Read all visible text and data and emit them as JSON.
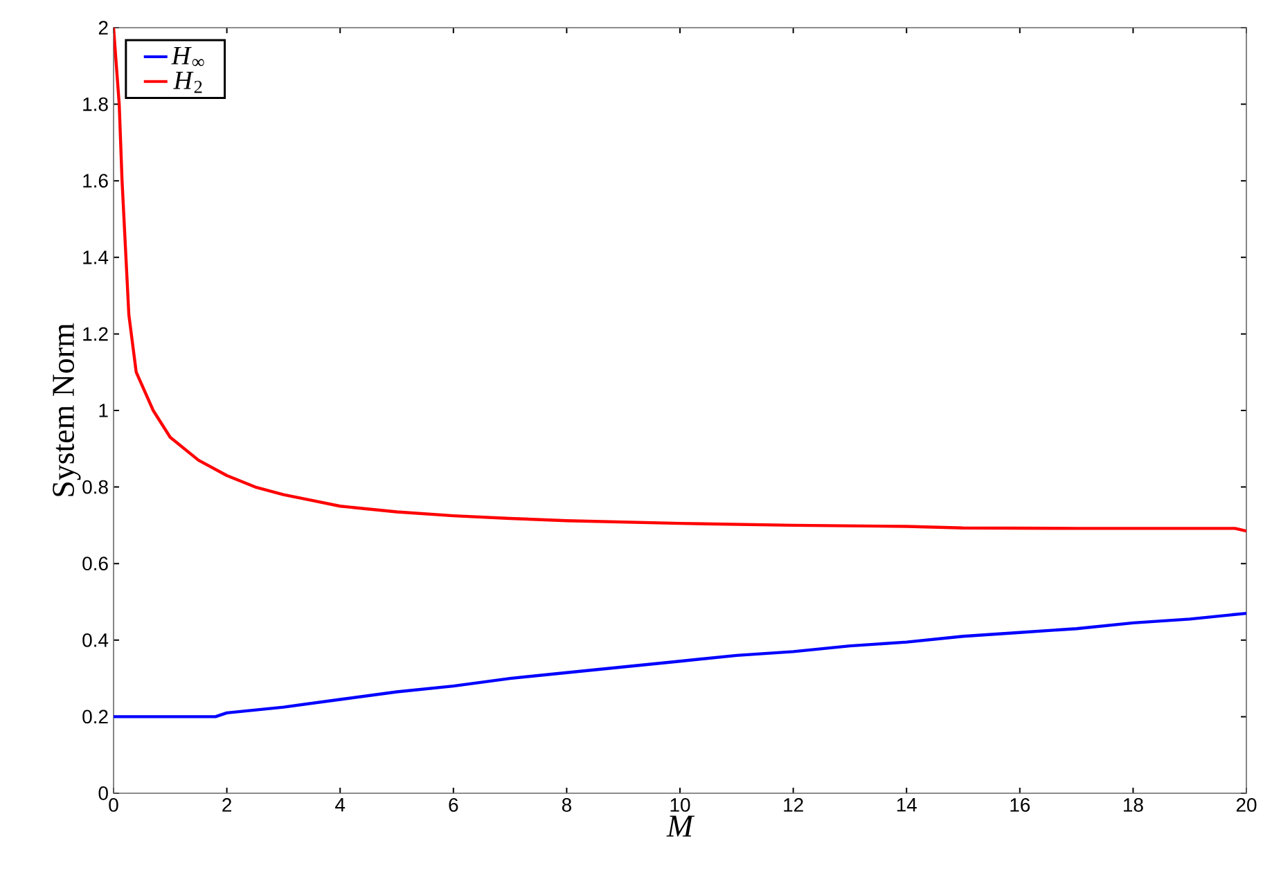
{
  "chart_data": {
    "type": "line",
    "xlabel": "M",
    "ylabel": "System Norm",
    "xlim": [
      0,
      20
    ],
    "ylim": [
      0,
      2
    ],
    "xticks": [
      0,
      2,
      4,
      6,
      8,
      10,
      12,
      14,
      16,
      18,
      20
    ],
    "yticks": [
      0,
      0.2,
      0.4,
      0.6,
      0.8,
      1,
      1.2,
      1.4,
      1.6,
      1.8,
      2
    ],
    "grid": false,
    "legend": "top left",
    "line_style": "solid",
    "marker": "none",
    "series": [
      {
        "name": "*H*$_{∞}$",
        "color": "#0000ff",
        "x": [
          0,
          1.8,
          2,
          3,
          4,
          5,
          6,
          7,
          8,
          9,
          10,
          11,
          12,
          13,
          14,
          15,
          16,
          17,
          18,
          19,
          20
        ],
        "values": [
          0.2,
          0.2,
          0.21,
          0.225,
          0.245,
          0.265,
          0.28,
          0.3,
          0.315,
          0.33,
          0.345,
          0.36,
          0.37,
          0.385,
          0.395,
          0.41,
          0.42,
          0.43,
          0.445,
          0.455,
          0.47
        ]
      },
      {
        "name": "*H*$_{2}$",
        "color": "#ff0000",
        "x": [
          0,
          0.1,
          0.15,
          0.27,
          0.4,
          0.7,
          1,
          1.5,
          2,
          2.5,
          3,
          3.5,
          4,
          5,
          6,
          7,
          8,
          10,
          12,
          14,
          15,
          17,
          19.8,
          20
        ],
        "values": [
          2.0,
          1.8,
          1.6,
          1.25,
          1.1,
          1.0,
          0.93,
          0.87,
          0.83,
          0.8,
          0.78,
          0.765,
          0.75,
          0.735,
          0.725,
          0.718,
          0.712,
          0.705,
          0.7,
          0.697,
          0.693,
          0.692,
          0.692,
          0.685
        ]
      }
    ]
  }
}
